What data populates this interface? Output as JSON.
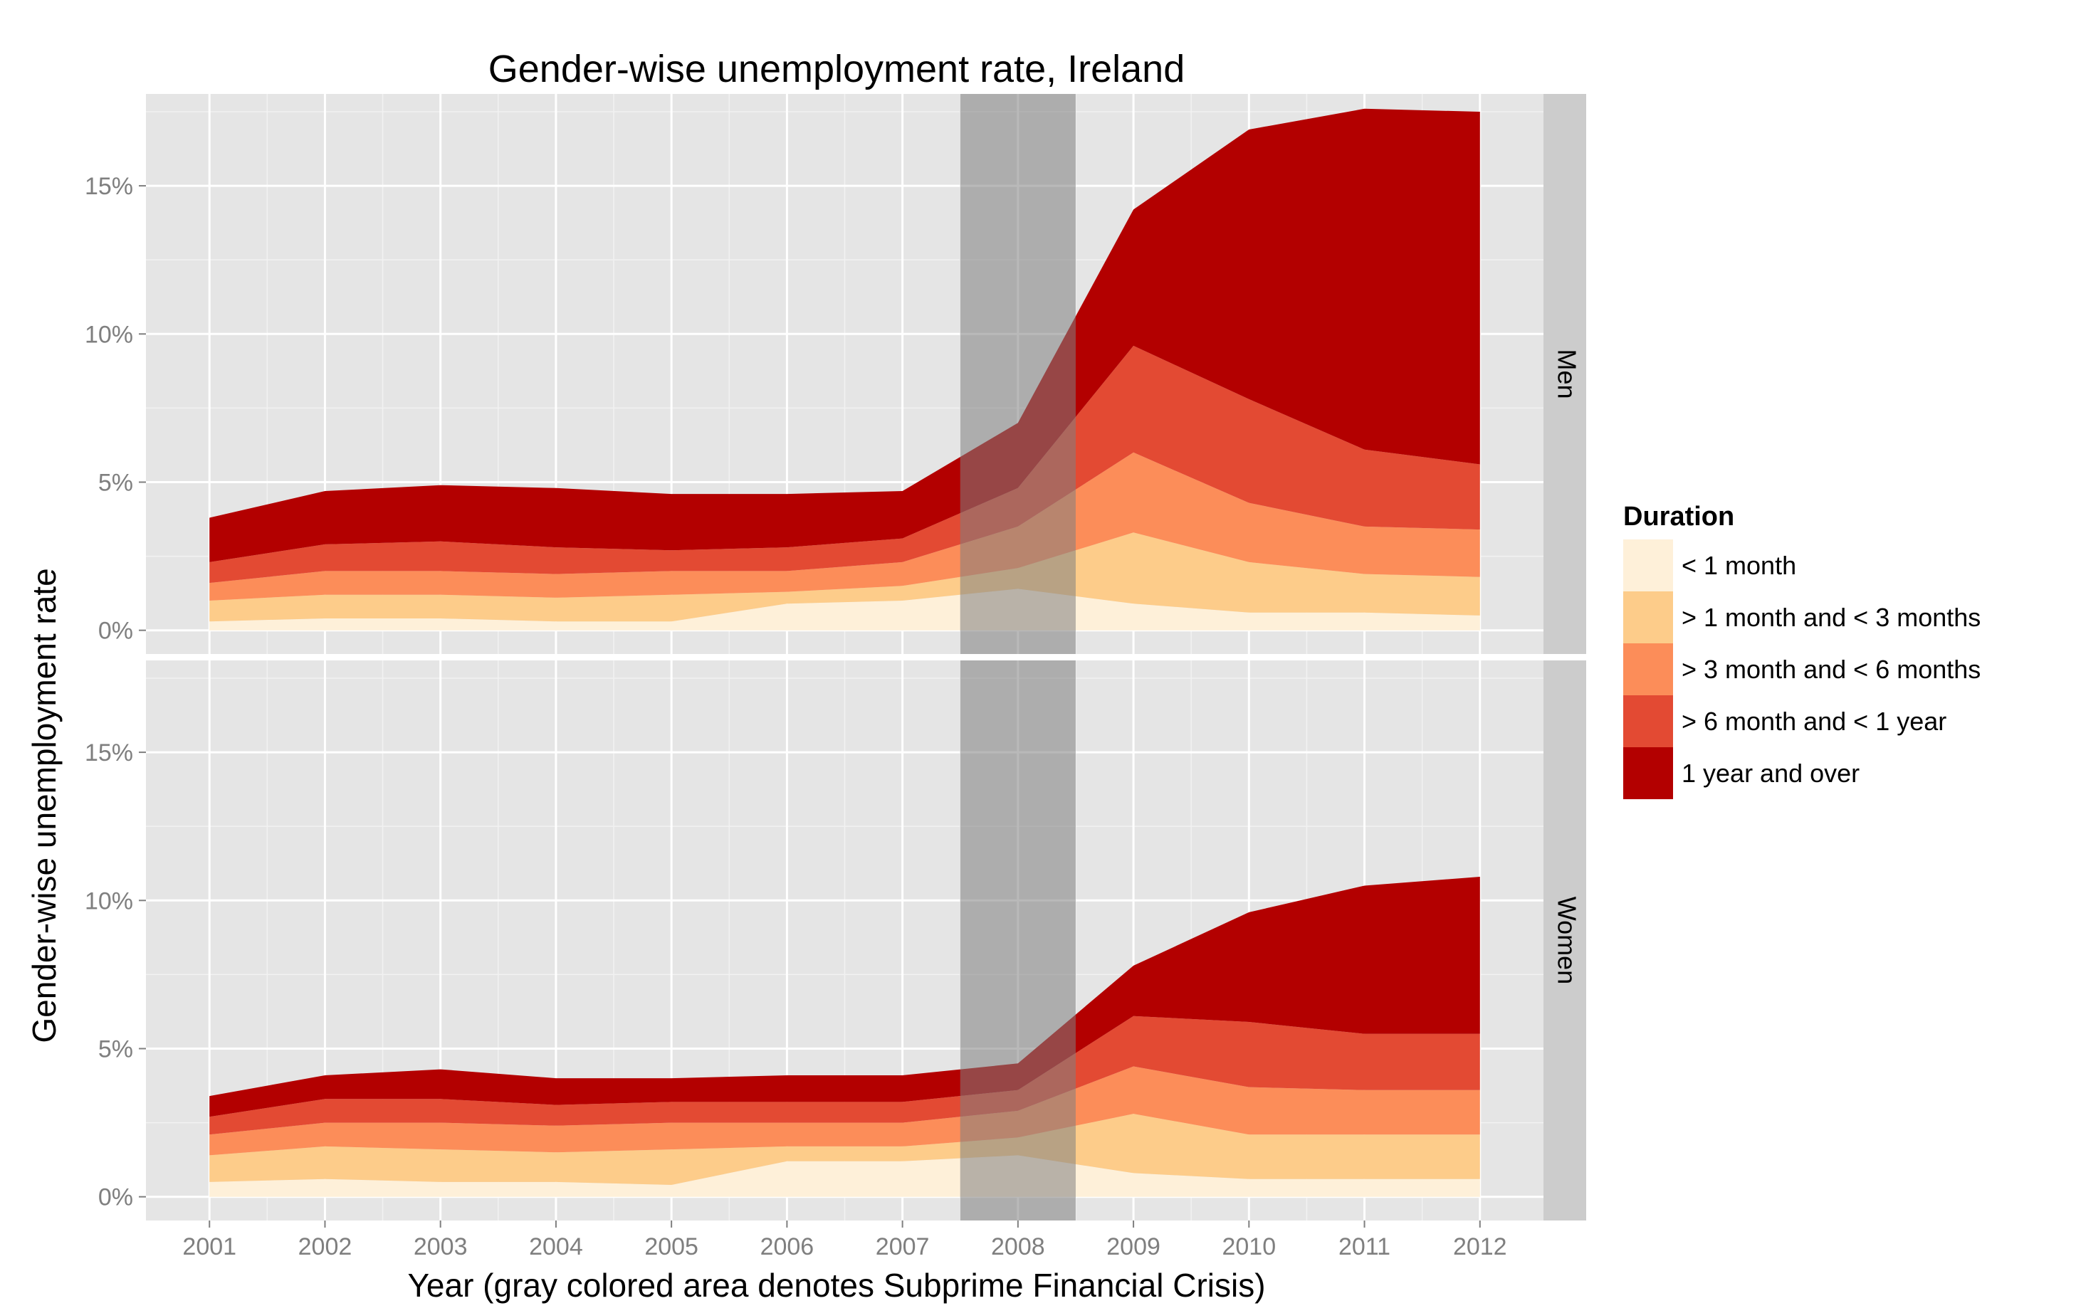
{
  "chart_data": {
    "type": "area",
    "stacked": true,
    "title": "Gender-wise unemployment rate, Ireland",
    "xlabel": "Year (gray colored area denotes Subprime Financial Crisis)",
    "ylabel": "Gender-wise unemployment rate",
    "x": [
      2001,
      2002,
      2003,
      2004,
      2005,
      2006,
      2007,
      2008,
      2009,
      2010,
      2011,
      2012
    ],
    "x_tick_labels": [
      "2001",
      "2002",
      "2003",
      "2004",
      "2005",
      "2006",
      "2007",
      "2008",
      "2009",
      "2010",
      "2011",
      "2012"
    ],
    "y_ticks": [
      0,
      5,
      10,
      15
    ],
    "y_tick_labels": [
      "0%",
      "5%",
      "10%",
      "15%"
    ],
    "ylim": [
      -0.8,
      18.1
    ],
    "xlim": [
      2000.45,
      2012.55
    ],
    "grid": true,
    "legend_title": "Duration",
    "legend_position": "right",
    "shaded_band": {
      "from": 2007.5,
      "to": 2008.5,
      "color": "#7f7f7f",
      "opacity": 0.55
    },
    "series": [
      {
        "name": "< 1 month",
        "color": "#fef0d9"
      },
      {
        "name": "> 1 month and < 3 months",
        "color": "#fdcc8a"
      },
      {
        "name": "> 3 month and < 6 months",
        "color": "#fc8d59"
      },
      {
        "name": "> 6 month and < 1 year",
        "color": "#e34a33"
      },
      {
        "name": "1 year and over",
        "color": "#b30000"
      }
    ],
    "panels": [
      {
        "label": "Men",
        "values": [
          [
            0.3,
            0.4,
            0.4,
            0.3,
            0.3,
            0.9,
            1.0,
            1.4,
            0.9,
            0.6,
            0.6,
            0.5
          ],
          [
            0.7,
            0.8,
            0.8,
            0.8,
            0.9,
            0.4,
            0.5,
            0.7,
            2.4,
            1.7,
            1.3,
            1.3
          ],
          [
            0.6,
            0.8,
            0.8,
            0.8,
            0.8,
            0.7,
            0.8,
            1.4,
            2.7,
            2.0,
            1.6,
            1.6
          ],
          [
            0.7,
            0.9,
            1.0,
            0.9,
            0.7,
            0.8,
            0.8,
            1.3,
            3.6,
            3.5,
            2.6,
            2.2
          ],
          [
            1.5,
            1.8,
            1.9,
            2.0,
            1.9,
            1.8,
            1.6,
            2.2,
            4.6,
            9.1,
            11.5,
            11.9
          ]
        ]
      },
      {
        "label": "Women",
        "values": [
          [
            0.5,
            0.6,
            0.5,
            0.5,
            0.4,
            1.2,
            1.2,
            1.4,
            0.8,
            0.6,
            0.6,
            0.6
          ],
          [
            0.9,
            1.1,
            1.1,
            1.0,
            1.2,
            0.5,
            0.5,
            0.6,
            2.0,
            1.5,
            1.5,
            1.5
          ],
          [
            0.7,
            0.8,
            0.9,
            0.9,
            0.9,
            0.8,
            0.8,
            0.9,
            1.6,
            1.6,
            1.5,
            1.5
          ],
          [
            0.6,
            0.8,
            0.8,
            0.7,
            0.7,
            0.7,
            0.7,
            0.7,
            1.7,
            2.2,
            1.9,
            1.9
          ],
          [
            0.7,
            0.8,
            1.0,
            0.9,
            0.8,
            0.9,
            0.9,
            0.9,
            1.7,
            3.7,
            5.0,
            5.3
          ]
        ]
      }
    ]
  }
}
